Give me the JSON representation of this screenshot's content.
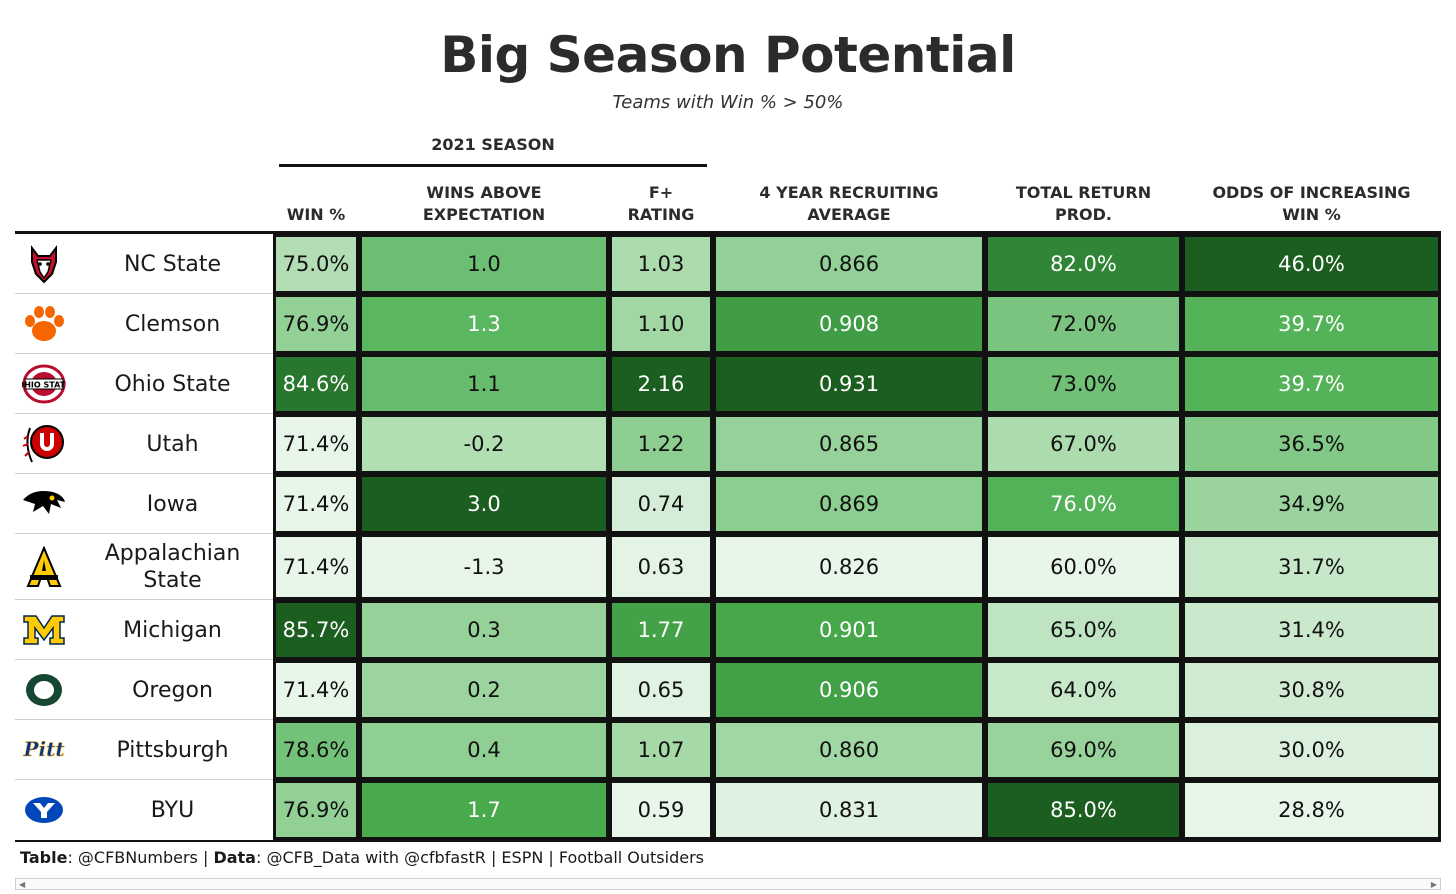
{
  "chart_data": {
    "type": "table",
    "title": "Big Season Potential",
    "subtitle": "Teams with Win % > 50%",
    "spanner": "2021 SEASON",
    "columns": [
      {
        "key": "team",
        "label": ""
      },
      {
        "key": "win_pct",
        "label": "WIN %"
      },
      {
        "key": "wae",
        "label": "WINS ABOVE EXPECTATION"
      },
      {
        "key": "fplus",
        "label": "F+ RATING"
      },
      {
        "key": "recruit",
        "label": "4 YEAR RECRUITING AVERAGE"
      },
      {
        "key": "retprod",
        "label": "TOTAL RETURN PROD."
      },
      {
        "key": "odds",
        "label": "ODDS OF INCREASING WIN %"
      }
    ],
    "rows": [
      {
        "team": "NC State",
        "logo": "nc-state-wolf-logo",
        "win_pct": "75.0%",
        "wae": "1.0",
        "fplus": "1.03",
        "recruit": "0.866",
        "retprod": "82.0%",
        "odds": "46.0%"
      },
      {
        "team": "Clemson",
        "logo": "clemson-paw-logo",
        "win_pct": "76.9%",
        "wae": "1.3",
        "fplus": "1.10",
        "recruit": "0.908",
        "retprod": "72.0%",
        "odds": "39.7%"
      },
      {
        "team": "Ohio State",
        "logo": "ohio-state-logo",
        "win_pct": "84.6%",
        "wae": "1.1",
        "fplus": "2.16",
        "recruit": "0.931",
        "retprod": "73.0%",
        "odds": "39.7%"
      },
      {
        "team": "Utah",
        "logo": "utah-u-logo",
        "win_pct": "71.4%",
        "wae": "-0.2",
        "fplus": "1.22",
        "recruit": "0.865",
        "retprod": "67.0%",
        "odds": "36.5%"
      },
      {
        "team": "Iowa",
        "logo": "iowa-hawkeye-logo",
        "win_pct": "71.4%",
        "wae": "3.0",
        "fplus": "0.74",
        "recruit": "0.869",
        "retprod": "76.0%",
        "odds": "34.9%"
      },
      {
        "team": "Appalachian State",
        "logo": "app-state-a-logo",
        "win_pct": "71.4%",
        "wae": "-1.3",
        "fplus": "0.63",
        "recruit": "0.826",
        "retprod": "60.0%",
        "odds": "31.7%"
      },
      {
        "team": "Michigan",
        "logo": "michigan-m-logo",
        "win_pct": "85.7%",
        "wae": "0.3",
        "fplus": "1.77",
        "recruit": "0.901",
        "retprod": "65.0%",
        "odds": "31.4%"
      },
      {
        "team": "Oregon",
        "logo": "oregon-o-logo",
        "win_pct": "71.4%",
        "wae": "0.2",
        "fplus": "0.65",
        "recruit": "0.906",
        "retprod": "64.0%",
        "odds": "30.8%"
      },
      {
        "team": "Pittsburgh",
        "logo": "pitt-script-logo",
        "win_pct": "78.6%",
        "wae": "0.4",
        "fplus": "1.07",
        "recruit": "0.860",
        "retprod": "69.0%",
        "odds": "30.0%"
      },
      {
        "team": "BYU",
        "logo": "byu-y-logo",
        "win_pct": "76.9%",
        "wae": "1.7",
        "fplus": "0.59",
        "recruit": "0.831",
        "retprod": "85.0%",
        "odds": "28.8%"
      }
    ],
    "color_scale": [
      "#e8f5e9",
      "#c7e7c9",
      "#9fd6a2",
      "#75c27b",
      "#4caf50",
      "#3a9440",
      "#1b5e20"
    ]
  },
  "footer": {
    "table_label": "Table",
    "table_value": ": @CFBNumbers | ",
    "data_label": "Data",
    "data_value": ": @CFB_Data with @cfbfastR | ESPN | Football Outsiders"
  }
}
